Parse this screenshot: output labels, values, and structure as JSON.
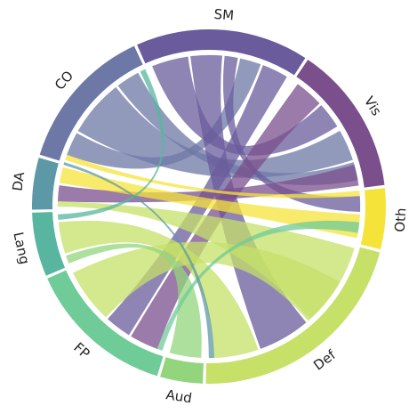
{
  "diagram": {
    "type": "chord",
    "segments": [
      {
        "id": "SM",
        "label": "SM",
        "color": "#6a5c9c"
      },
      {
        "id": "Vis",
        "label": "Vis",
        "color": "#7a4f8c"
      },
      {
        "id": "Oth",
        "label": "Oth",
        "color": "#f5e33a"
      },
      {
        "id": "Def",
        "label": "Def",
        "color": "#c6e068"
      },
      {
        "id": "Aud",
        "label": "Aud",
        "color": "#93d57c"
      },
      {
        "id": "FP",
        "label": "FP",
        "color": "#6fcb98"
      },
      {
        "id": "Lang",
        "label": "Lang",
        "color": "#58b59f"
      },
      {
        "id": "DA",
        "label": "DA",
        "color": "#5d98a6"
      },
      {
        "id": "CO",
        "label": "CO",
        "color": "#6e78a6"
      }
    ]
  }
}
